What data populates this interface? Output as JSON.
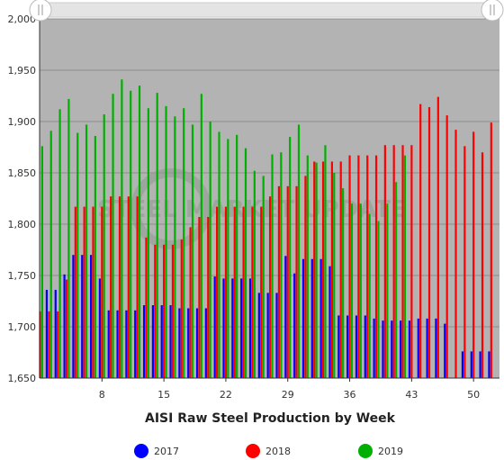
{
  "chart_data": {
    "type": "bar",
    "title": "AISI Raw Steel Production by Week",
    "xlabel": "",
    "ylabel": "",
    "ylim": [
      1650,
      2000
    ],
    "yticks": [
      1650,
      1700,
      1750,
      1800,
      1850,
      1900,
      1950,
      2000
    ],
    "ytick_labels": [
      "1,650",
      "1,700",
      "1,750",
      "1,800",
      "1,850",
      "1,900",
      "1,950",
      "2,000"
    ],
    "xticks": [
      8,
      15,
      22,
      29,
      36,
      43,
      50
    ],
    "xtick_labels": [
      "8",
      "15",
      "22",
      "29",
      "36",
      "43",
      "50"
    ],
    "grid": true,
    "legend_position": "bottom",
    "watermark_text": "STEEL MARKET UPDATE",
    "categories": [
      1,
      2,
      3,
      4,
      5,
      6,
      7,
      8,
      9,
      10,
      11,
      12,
      13,
      14,
      15,
      16,
      17,
      18,
      19,
      20,
      21,
      22,
      23,
      24,
      25,
      26,
      27,
      28,
      29,
      30,
      31,
      32,
      33,
      34,
      35,
      36,
      37,
      38,
      39,
      40,
      41,
      42,
      43,
      44,
      45,
      46,
      47,
      48,
      49,
      50,
      51,
      52
    ],
    "series": [
      {
        "name": "2017",
        "color": "#0000ff",
        "values": [
          1736,
          1736,
          1736,
          1751,
          1770,
          1770,
          1770,
          1747,
          1716,
          1716,
          1716,
          1716,
          1721,
          1721,
          1721,
          1721,
          1718,
          1718,
          1718,
          1718,
          1749,
          1747,
          1747,
          1747,
          1747,
          1733,
          1733,
          1733,
          1769,
          1752,
          1766,
          1766,
          1766,
          1759,
          1711,
          1711,
          1711,
          1711,
          1708,
          1706,
          1706,
          1706,
          1706,
          1708,
          1708,
          1708,
          1703,
          null,
          1676,
          1676,
          1676,
          1676
        ]
      },
      {
        "name": "2018",
        "color": "#ff0000",
        "values": [
          1715,
          1715,
          1715,
          1746,
          1817,
          1817,
          1817,
          1817,
          1827,
          1827,
          1827,
          1827,
          1787,
          1780,
          1780,
          1780,
          1785,
          1797,
          1807,
          1807,
          1817,
          1817,
          1817,
          1817,
          1817,
          1817,
          1827,
          1837,
          1837,
          1837,
          1847,
          1861,
          1861,
          1861,
          1861,
          1867,
          1867,
          1867,
          1867,
          1877,
          1877,
          1877,
          1877,
          1917,
          1914,
          1924,
          1906,
          1892,
          1876,
          1890,
          1870,
          1899
        ]
      },
      {
        "name": "2019",
        "color": "#00b000",
        "values": [
          1876,
          1891,
          1912,
          1922,
          1889,
          1897,
          1886,
          1907,
          1927,
          1941,
          1930,
          1935,
          1913,
          1928,
          1915,
          1905,
          1913,
          1897,
          1927,
          1900,
          1890,
          1883,
          1887,
          1874,
          1852,
          1847,
          1868,
          1870,
          1885,
          1897,
          1867,
          1860,
          1877,
          1850,
          1835,
          1820,
          1820,
          1810,
          1803,
          1820,
          1841,
          1867,
          null,
          null,
          null,
          null,
          null,
          null,
          null,
          null,
          null,
          null
        ]
      }
    ]
  }
}
